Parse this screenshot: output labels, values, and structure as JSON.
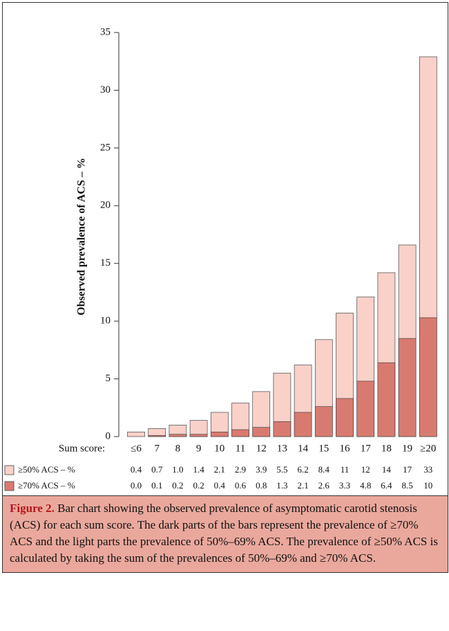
{
  "chart_data": {
    "type": "bar",
    "ylabel": "Observed prevalence of ACS – %",
    "xlabel": "Sum score:",
    "categories": [
      "≤6",
      "7",
      "8",
      "9",
      "10",
      "11",
      "12",
      "13",
      "14",
      "15",
      "16",
      "17",
      "18",
      "19",
      "≥20"
    ],
    "series": [
      {
        "name": "≥50% ACS – %",
        "color": "#f9d1c9",
        "values": [
          0.4,
          0.7,
          1.0,
          1.4,
          2.1,
          2.9,
          3.9,
          5.5,
          6.2,
          8.4,
          10.7,
          12.1,
          14.2,
          16.6,
          32.9
        ],
        "value_labels": [
          "0.4",
          "0.7",
          "1.0",
          "1.4",
          "2.1",
          "2.9",
          "3.9",
          "5.5",
          "6.2",
          "8.4",
          "11",
          "12",
          "14",
          "17",
          "33"
        ]
      },
      {
        "name": "≥70% ACS – %",
        "color": "#d97a70",
        "values": [
          0.0,
          0.1,
          0.2,
          0.2,
          0.4,
          0.6,
          0.8,
          1.3,
          2.1,
          2.6,
          3.3,
          4.8,
          6.4,
          8.5,
          10.3
        ],
        "value_labels": [
          "0.0",
          "0.1",
          "0.2",
          "0.2",
          "0.4",
          "0.6",
          "0.8",
          "1.3",
          "2.1",
          "2.6",
          "3.3",
          "4.8",
          "6.4",
          "8.5",
          "10"
        ]
      }
    ],
    "ylim": [
      0,
      35
    ],
    "yticks": [
      0,
      5,
      10,
      15,
      20,
      25,
      30,
      35
    ],
    "grid": false
  },
  "caption": {
    "label": "Figure 2.",
    "text": " Bar chart showing the observed prevalence of asymptomatic carotid stenosis (ACS) for each sum score. The dark parts of the bars represent the prevalence of ≥70% ACS and the light parts the prevalence of 50%–69% ACS. The prevalence of ≥50% ACS is calculated by taking the sum of the prevalences of 50%–69% and ≥70% ACS."
  }
}
